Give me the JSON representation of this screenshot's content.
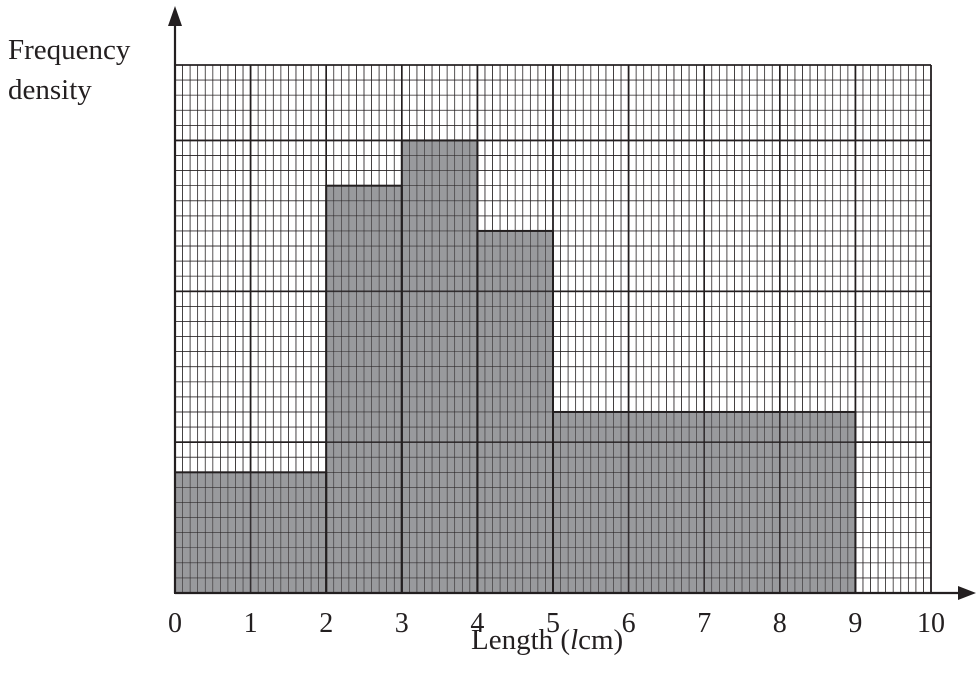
{
  "chart_data": {
    "type": "histogram",
    "ylabel_lines": [
      "Frequency",
      "density"
    ],
    "xlabel_prefix": "Length (",
    "xlabel_var": "l",
    "xlabel_suffix": "cm)",
    "xlim": [
      0,
      10
    ],
    "ylim": [
      0,
      35
    ],
    "x_ticks": [
      "0",
      "1",
      "2",
      "3",
      "4",
      "5",
      "6",
      "7",
      "8",
      "9",
      "10"
    ],
    "y_ticks": [],
    "grid": true,
    "bar_color": "#939598",
    "bins": [
      {
        "x0": 0,
        "x1": 2,
        "height": 8
      },
      {
        "x0": 2,
        "x1": 3,
        "height": 27
      },
      {
        "x0": 3,
        "x1": 4,
        "height": 30
      },
      {
        "x0": 4,
        "x1": 5,
        "height": 24
      },
      {
        "x0": 5,
        "x1": 9,
        "height": 12
      }
    ]
  }
}
